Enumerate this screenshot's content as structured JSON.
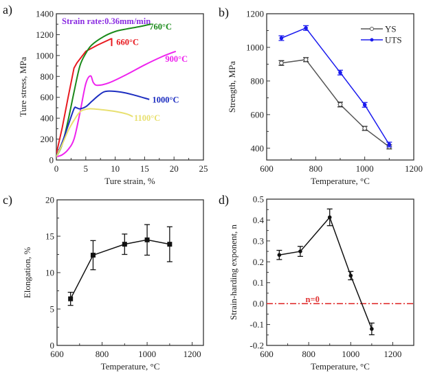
{
  "chart_data": [
    {
      "id": "a",
      "type": "line",
      "panel_label": "a)",
      "title": "",
      "annotation": "Strain rate:0.36mm/min",
      "annotation_color": "#8a2be2",
      "xlabel": "Ture strain, %",
      "ylabel": "Ture stress, MPa",
      "xlim": [
        0,
        25
      ],
      "ylim": [
        0,
        1400
      ],
      "xticks": [
        0,
        5,
        10,
        15,
        20,
        25
      ],
      "yticks": [
        0,
        200,
        400,
        600,
        800,
        1000,
        1200,
        1400
      ],
      "series": [
        {
          "name": "660°C",
          "color": "#e8191f",
          "x": [
            0,
            1,
            2,
            3,
            3.5,
            5,
            7,
            9.3,
            9.4,
            9.4
          ],
          "y": [
            60,
            310,
            600,
            880,
            930,
            1040,
            1100,
            1160,
            1160,
            1090
          ],
          "label_pos": [
            10.2,
            1100
          ]
        },
        {
          "name": "760°C",
          "color": "#1a8a1a",
          "x": [
            0,
            1,
            2,
            3,
            4,
            5,
            6,
            8,
            10,
            12,
            14,
            16
          ],
          "y": [
            30,
            150,
            380,
            650,
            900,
            1020,
            1100,
            1180,
            1230,
            1255,
            1275,
            1300
          ],
          "label_pos": [
            15.8,
            1250
          ]
        },
        {
          "name": "900°C",
          "color": "#ee22ee",
          "x": [
            0,
            1,
            2,
            3,
            4,
            5,
            5.8,
            6.3,
            7,
            9,
            12,
            15,
            18,
            20.3
          ],
          "y": [
            30,
            50,
            100,
            200,
            450,
            730,
            805,
            740,
            715,
            740,
            820,
            910,
            990,
            1040
          ],
          "label_pos": [
            18.5,
            940
          ]
        },
        {
          "name": "1000°C",
          "color": "#1c2dc0",
          "x": [
            0,
            1,
            2,
            3,
            3.4,
            4,
            5,
            6,
            7,
            8,
            9,
            11,
            13,
            15.8
          ],
          "y": [
            30,
            170,
            330,
            490,
            500,
            490,
            510,
            560,
            610,
            650,
            660,
            650,
            625,
            580
          ],
          "label_pos": [
            16.3,
            550
          ]
        },
        {
          "name": "1100°C",
          "color": "#e8e070",
          "x": [
            0,
            1,
            2,
            3,
            4,
            5,
            6,
            8,
            10,
            12,
            13
          ],
          "y": [
            30,
            150,
            280,
            380,
            460,
            485,
            490,
            480,
            465,
            440,
            415
          ],
          "label_pos": [
            13.2,
            375
          ]
        }
      ]
    },
    {
      "id": "b",
      "type": "line",
      "panel_label": "b)",
      "xlabel": "Temperature, °C",
      "ylabel": "Strength, MPa",
      "xlim": [
        600,
        1200
      ],
      "ylim": [
        330,
        1200
      ],
      "xticks": [
        600,
        800,
        1000,
        1200
      ],
      "yticks": [
        400,
        600,
        800,
        1000,
        1200
      ],
      "legend": "top-right",
      "x": [
        660,
        760,
        900,
        1000,
        1100
      ],
      "series": [
        {
          "name": "YS",
          "color": "#555555",
          "marker": "open-circle",
          "values": [
            907,
            927,
            660,
            518,
            408
          ],
          "errors": [
            14,
            12,
            14,
            12,
            12
          ]
        },
        {
          "name": "UTS",
          "color": "#1a1aee",
          "marker": "filled-circle",
          "values": [
            1055,
            1115,
            850,
            658,
            422
          ],
          "errors": [
            14,
            14,
            14,
            14,
            14
          ]
        }
      ]
    },
    {
      "id": "c",
      "type": "line",
      "panel_label": "c)",
      "xlabel": "Temperature, °C",
      "ylabel": "Elongation, %",
      "xlim": [
        600,
        1250
      ],
      "ylim": [
        0,
        20
      ],
      "xticks": [
        600,
        800,
        1000,
        1200
      ],
      "yticks": [
        0,
        5,
        10,
        15,
        20
      ],
      "x": [
        660,
        760,
        900,
        1000,
        1100
      ],
      "series": [
        {
          "name": "Elongation",
          "color": "#111111",
          "marker": "filled-square",
          "values": [
            6.4,
            12.4,
            13.9,
            14.5,
            13.9
          ],
          "errors": [
            0.9,
            2.0,
            1.4,
            2.1,
            2.4
          ]
        }
      ]
    },
    {
      "id": "d",
      "type": "line",
      "panel_label": "d)",
      "xlabel": "Temperature, °C",
      "ylabel": "Strain-harding exponent, n",
      "xlim": [
        600,
        1300
      ],
      "ylim": [
        -0.2,
        0.5
      ],
      "xticks": [
        600,
        800,
        1000,
        1200
      ],
      "yticks": [
        -0.2,
        -0.1,
        0.0,
        0.1,
        0.2,
        0.3,
        0.4,
        0.5
      ],
      "ytick_labels": [
        "-0.2",
        "-0.1",
        "0.0",
        "0.1",
        "0.2",
        "0.3",
        "0.4",
        "0.5"
      ],
      "x": [
        660,
        760,
        900,
        1000,
        1100
      ],
      "series": [
        {
          "name": "n",
          "color": "#111111",
          "marker": "filled-circle",
          "values": [
            0.233,
            0.25,
            0.413,
            0.134,
            -0.121
          ],
          "errors": [
            0.022,
            0.024,
            0.04,
            0.02,
            0.028
          ]
        }
      ],
      "reference_line": {
        "y": 0.0,
        "label": "n=0",
        "color": "#e03030",
        "style": "dash-dot"
      }
    }
  ]
}
